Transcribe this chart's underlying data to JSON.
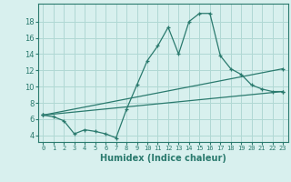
{
  "xlabel": "Humidex (Indice chaleur)",
  "background_color": "#d8f0ee",
  "grid_color": "#b0d8d4",
  "line_color": "#2a7a6e",
  "xlim": [
    -0.5,
    23.5
  ],
  "ylim": [
    3.2,
    20.2
  ],
  "yticks": [
    4,
    6,
    8,
    10,
    12,
    14,
    16,
    18
  ],
  "xticks": [
    0,
    1,
    2,
    3,
    4,
    5,
    6,
    7,
    8,
    9,
    10,
    11,
    12,
    13,
    14,
    15,
    16,
    17,
    18,
    19,
    20,
    21,
    22,
    23
  ],
  "line1_x": [
    0,
    1,
    2,
    3,
    4,
    5,
    6,
    7,
    8,
    9,
    10,
    11,
    12,
    13,
    14,
    15,
    16,
    17,
    18,
    19,
    20,
    21,
    22,
    23
  ],
  "line1_y": [
    6.5,
    6.3,
    5.8,
    4.2,
    4.7,
    4.5,
    4.2,
    3.7,
    7.2,
    10.2,
    13.2,
    15.0,
    17.3,
    14.0,
    18.0,
    19.0,
    19.0,
    13.8,
    12.2,
    11.5,
    10.2,
    9.7,
    9.4,
    9.4
  ],
  "line2_x": [
    0,
    23
  ],
  "line2_y": [
    6.5,
    9.4
  ],
  "line3_x": [
    0,
    23
  ],
  "line3_y": [
    6.5,
    12.2
  ]
}
